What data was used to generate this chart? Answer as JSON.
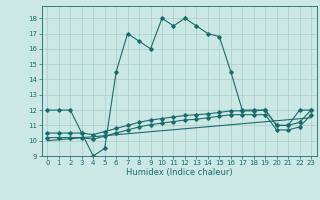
{
  "title": "",
  "xlabel": "Humidex (Indice chaleur)",
  "background_color": "#cce8e4",
  "grid_color": "#aaccca",
  "line_color": "#1a6b6b",
  "xlim": [
    -0.5,
    23.5
  ],
  "ylim": [
    9,
    18.8
  ],
  "yticks": [
    9,
    10,
    11,
    12,
    13,
    14,
    15,
    16,
    17,
    18
  ],
  "xticks": [
    0,
    1,
    2,
    3,
    4,
    5,
    6,
    7,
    8,
    9,
    10,
    11,
    12,
    13,
    14,
    15,
    16,
    17,
    18,
    19,
    20,
    21,
    22,
    23
  ],
  "series1_x": [
    0,
    1,
    2,
    3,
    4,
    5,
    6,
    7,
    8,
    9,
    10,
    11,
    12,
    13,
    14,
    15,
    16,
    17,
    18,
    19,
    20,
    21,
    22,
    23
  ],
  "series1_y": [
    12,
    12,
    12,
    10.5,
    9.0,
    9.5,
    14.5,
    17.0,
    16.5,
    16.0,
    18.0,
    17.5,
    18.0,
    17.5,
    17.0,
    16.8,
    14.5,
    12.0,
    12.0,
    12.0,
    11.0,
    11.0,
    12.0,
    12.0
  ],
  "series2_x": [
    0,
    1,
    2,
    3,
    4,
    5,
    6,
    7,
    8,
    9,
    10,
    11,
    12,
    13,
    14,
    15,
    16,
    17,
    18,
    19,
    20,
    21,
    22,
    23
  ],
  "series2_y": [
    10.5,
    10.5,
    10.5,
    10.5,
    10.4,
    10.6,
    10.8,
    11.0,
    11.2,
    11.35,
    11.45,
    11.55,
    11.65,
    11.7,
    11.75,
    11.85,
    11.95,
    11.95,
    11.95,
    12.0,
    11.0,
    11.0,
    11.2,
    12.0
  ],
  "series3_x": [
    0,
    1,
    2,
    3,
    4,
    5,
    6,
    7,
    8,
    9,
    10,
    11,
    12,
    13,
    14,
    15,
    16,
    17,
    18,
    19,
    20,
    21,
    22,
    23
  ],
  "series3_y": [
    10.2,
    10.2,
    10.2,
    10.2,
    10.1,
    10.3,
    10.5,
    10.7,
    10.9,
    11.05,
    11.15,
    11.25,
    11.35,
    11.4,
    11.5,
    11.6,
    11.7,
    11.7,
    11.7,
    11.7,
    10.7,
    10.7,
    10.9,
    11.7
  ],
  "series4_x": [
    0,
    23
  ],
  "series4_y": [
    10.0,
    11.5
  ]
}
